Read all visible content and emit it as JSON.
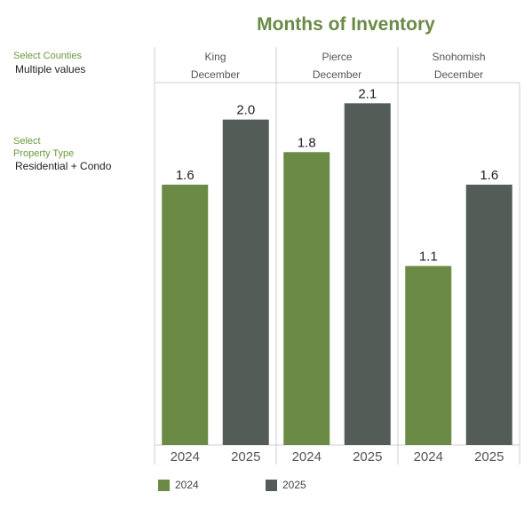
{
  "filters": {
    "counties_label": "Select Counties",
    "counties_value": "Multiple values",
    "property_label_1": "Select",
    "property_label_2": "Property Type",
    "property_value": "Residential + Condo"
  },
  "chart_data": {
    "type": "bar",
    "title": "Months of Inventory",
    "panels": [
      {
        "name": "King",
        "month": "December",
        "categories": [
          "2024",
          "2025"
        ],
        "values": [
          1.6,
          2.0
        ]
      },
      {
        "name": "Pierce",
        "month": "December",
        "categories": [
          "2024",
          "2025"
        ],
        "values": [
          1.8,
          2.1
        ]
      },
      {
        "name": "Snohomish",
        "month": "December",
        "categories": [
          "2024",
          "2025"
        ],
        "values": [
          1.1,
          1.6
        ]
      }
    ],
    "ylim": [
      0,
      2.2
    ],
    "legend": {
      "position": "bottom",
      "items": [
        {
          "name": "2024",
          "color": "#6a8a46"
        },
        {
          "name": "2025",
          "color": "#545c58"
        }
      ]
    },
    "colors": {
      "2024": "#6a8a46",
      "2025": "#545c58"
    },
    "grid": false
  }
}
